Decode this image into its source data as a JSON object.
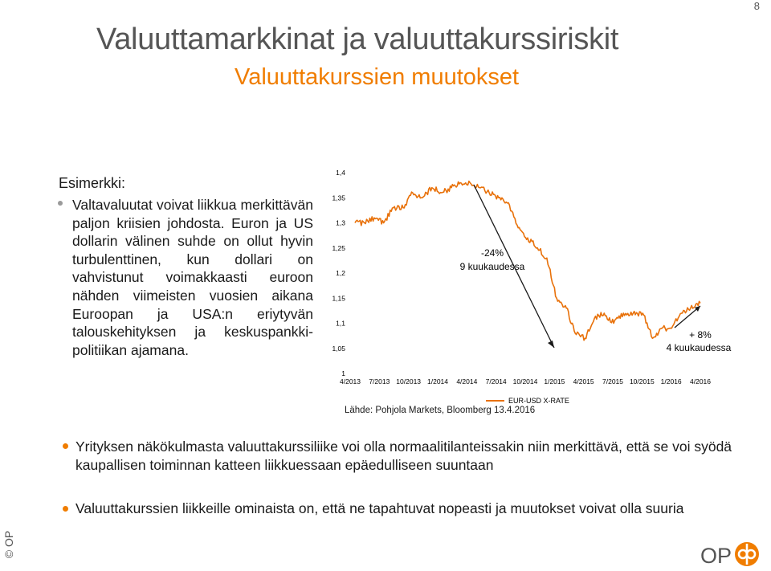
{
  "page_number": "8",
  "title": "Valuuttamarkkinat ja valuuttakurssiriskit",
  "subtitle": "Valuuttakurssien muutokset",
  "example": {
    "heading": "Esimerkki:",
    "bullet": "Valtavaluutat voivat liikkua merkittävän paljon kriisien johdosta. Euron ja US dollarin välinen suhde on ollut hyvin turbulenttinen, kun dollari on vahvistunut voimakkaasti euroon nähden viimeisten vuosien aikana Euroopan ja USA:n eriytyvän talouskehityksen ja keskuspankki-politiikan ajamana."
  },
  "chart_data": {
    "type": "line",
    "x_tick_labels": [
      "4/2013",
      "7/2013",
      "10/2013",
      "1/2014",
      "4/2014",
      "7/2014",
      "10/2014",
      "1/2015",
      "4/2015",
      "7/2015",
      "10/2015",
      "1/2016",
      "4/2016"
    ],
    "y_tick_labels": [
      "1,4",
      "1,35",
      "1,3",
      "1,25",
      "1,2",
      "1,15",
      "1,1",
      "1,05",
      "1"
    ],
    "ylim": [
      1.0,
      1.4
    ],
    "series": [
      {
        "name": "EUR-USD X-RATE",
        "color": "#e8710a",
        "x": [
          "2013-04",
          "2013-05",
          "2013-06",
          "2013-07",
          "2013-08",
          "2013-09",
          "2013-10",
          "2013-11",
          "2013-12",
          "2014-01",
          "2014-02",
          "2014-03",
          "2014-04",
          "2014-05",
          "2014-06",
          "2014-07",
          "2014-08",
          "2014-09",
          "2014-10",
          "2014-11",
          "2014-12",
          "2015-01",
          "2015-02",
          "2015-03",
          "2015-04",
          "2015-05",
          "2015-06",
          "2015-07",
          "2015-08",
          "2015-09",
          "2015-10",
          "2015-11",
          "2015-12",
          "2016-01",
          "2016-02",
          "2016-03",
          "2016-04"
        ],
        "values": [
          1.3,
          1.3,
          1.31,
          1.3,
          1.33,
          1.33,
          1.36,
          1.35,
          1.37,
          1.36,
          1.37,
          1.38,
          1.38,
          1.37,
          1.36,
          1.35,
          1.34,
          1.29,
          1.27,
          1.25,
          1.23,
          1.15,
          1.13,
          1.08,
          1.07,
          1.11,
          1.12,
          1.1,
          1.12,
          1.12,
          1.12,
          1.07,
          1.09,
          1.09,
          1.12,
          1.13,
          1.14
        ]
      }
    ],
    "annotations": [
      {
        "text_line1": "-24%",
        "text_line2": "9 kuukaudessa"
      },
      {
        "text_line1": "+ 8%",
        "text_line2": "4 kuukaudessa"
      }
    ],
    "grid": false,
    "legend": "bottom"
  },
  "source": "Lähde: Pohjola Markets, Bloomberg 13.4.2016",
  "bullets": [
    "Yrityksen näkökulmasta valuuttakurssiliike voi olla normaalitilanteissakin niin merkittävä, että se voi syödä kaupallisen toiminnan katteen liikkuessaan epäedulliseen suuntaan",
    "Valuuttakurssien liikkeille ominaista on, että ne tapahtuvat nopeasti ja muutokset voivat olla suuria"
  ],
  "copyright": "© OP",
  "logo_text": "OP",
  "colors": {
    "accent": "#f07d00",
    "title": "#555555",
    "line": "#e8710a"
  }
}
